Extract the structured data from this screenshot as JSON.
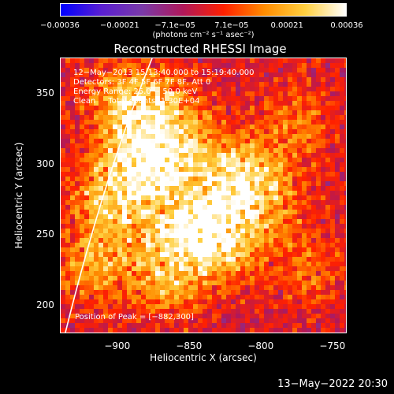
{
  "chart_data": {
    "type": "heatmap",
    "title": "Reconstructed RHESSI Image",
    "xlabel": "Heliocentric X (arcsec)",
    "ylabel": "Heliocentric Y (arcsec)",
    "xlim": [
      -940,
      -740
    ],
    "ylim": [
      180,
      375
    ],
    "x_ticks": [
      {
        "value": -900,
        "label": "−900"
      },
      {
        "value": -850,
        "label": "−850"
      },
      {
        "value": -800,
        "label": "−800"
      },
      {
        "value": -750,
        "label": "−750"
      }
    ],
    "y_ticks": [
      {
        "value": 350,
        "label": "350"
      },
      {
        "value": 300,
        "label": "300"
      },
      {
        "value": 250,
        "label": "250"
      },
      {
        "value": 200,
        "label": "200"
      }
    ],
    "colorbar": {
      "range": [
        -0.00036,
        0.00036
      ],
      "ticks": [
        {
          "value": -0.00036,
          "label": "−0.00036"
        },
        {
          "value": -0.00021,
          "label": "−0.00021"
        },
        {
          "value": -7.1e-05,
          "label": "−7.1e−05"
        },
        {
          "value": 7.1e-05,
          "label": "7.1e−05"
        },
        {
          "value": 0.00021,
          "label": "0.00021"
        },
        {
          "value": 0.00036,
          "label": "0.00036"
        }
      ],
      "units": "(photons cm⁻² s⁻¹ asec⁻²)",
      "colors": [
        "#0000ff",
        "#5a1fd0",
        "#7a3aa8",
        "#b0185a",
        "#ff2000",
        "#ff8c00",
        "#ffd040",
        "#ffffff"
      ]
    },
    "annotations": {
      "time_range": "12−May−2013 15:13:40.000 to 15:19:40.000",
      "detectors": "Detectors: 3F 4F 5F 6F 7F 8F, Att 0",
      "energy_range": "Energy Range: 25.0 − 50.0 keV",
      "clean": "Clean     Total counts: 1.30E+04",
      "peak": "Position of Peak = [−882,300]"
    },
    "peak_position": [
      -882,
      300
    ],
    "sources": [
      {
        "x": -882,
        "y": 300,
        "value": 0.00036
      },
      {
        "x": -905,
        "y": 275,
        "value": 0.00028
      },
      {
        "x": -860,
        "y": 248,
        "value": 0.0003
      },
      {
        "x": -835,
        "y": 265,
        "value": 0.00026
      },
      {
        "x": -812,
        "y": 292,
        "value": 0.00027
      },
      {
        "x": -825,
        "y": 240,
        "value": 0.00024
      },
      {
        "x": -895,
        "y": 345,
        "value": 0.00025
      },
      {
        "x": -870,
        "y": 335,
        "value": 0.00022
      },
      {
        "x": -850,
        "y": 310,
        "value": 0.0002
      },
      {
        "x": -915,
        "y": 228,
        "value": 0.00022
      },
      {
        "x": -865,
        "y": 215,
        "value": 0.00018
      },
      {
        "x": -795,
        "y": 270,
        "value": 0.00016
      },
      {
        "x": -775,
        "y": 330,
        "value": 0.00014
      },
      {
        "x": -765,
        "y": 225,
        "value": 0.00012
      }
    ],
    "limb": {
      "type": "line"
    }
  },
  "footer": {
    "timestamp": "13−May−2022 20:30"
  }
}
